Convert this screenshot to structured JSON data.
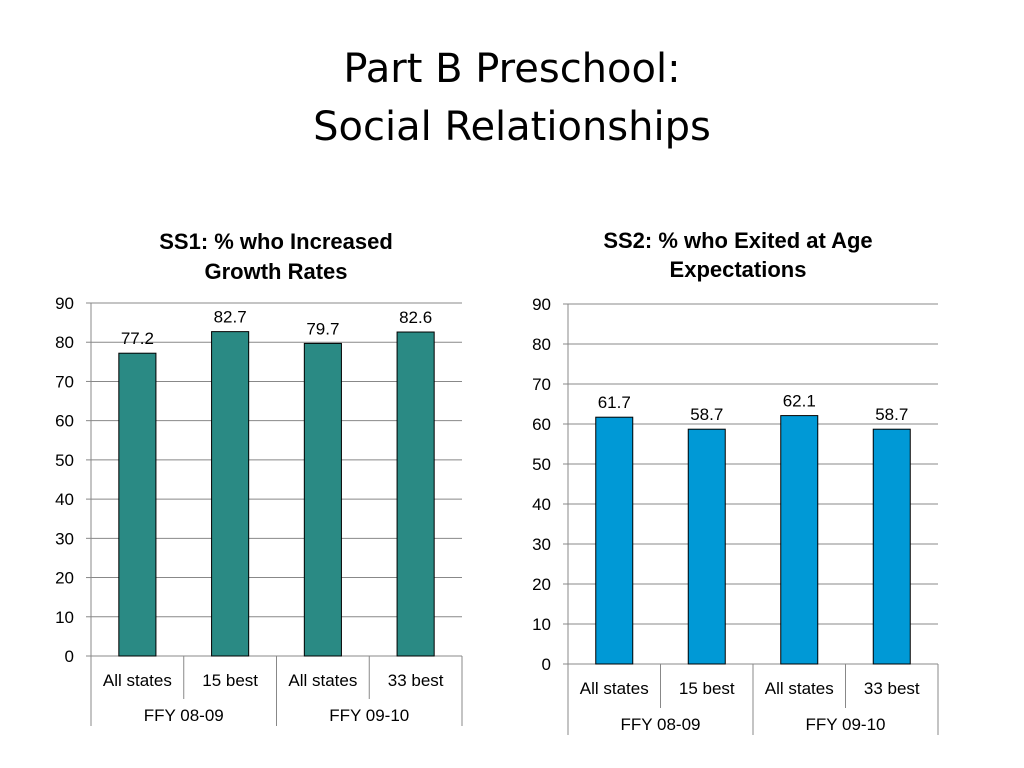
{
  "slide": {
    "title_line1": "Part B Preschool:",
    "title_line2": "Social Relationships"
  },
  "chart_data": [
    {
      "type": "bar",
      "title_lines": [
        "SS1: % who Increased",
        "Growth Rates"
      ],
      "categories": [
        "All states",
        "15 best",
        "All states",
        "33 best"
      ],
      "groups": [
        {
          "label": "FFY 08-09",
          "span": 2
        },
        {
          "label": "FFY 09-10",
          "span": 2
        }
      ],
      "values": [
        77.2,
        82.7,
        79.7,
        82.6
      ],
      "data_labels": [
        "77.2",
        "82.7",
        "79.7",
        "82.6"
      ],
      "ylim": [
        0,
        90
      ],
      "yticks": [
        0,
        10,
        20,
        30,
        40,
        50,
        60,
        70,
        80,
        90
      ],
      "grid": true,
      "legend": "none",
      "bar_color": "#2a8a84"
    },
    {
      "type": "bar",
      "title_lines": [
        "SS2: % who Exited at Age",
        "Expectations"
      ],
      "categories": [
        "All states",
        "15 best",
        "All states",
        "33 best"
      ],
      "groups": [
        {
          "label": "FFY 08-09",
          "span": 2
        },
        {
          "label": "FFY 09-10",
          "span": 2
        }
      ],
      "values": [
        61.7,
        58.7,
        62.1,
        58.7
      ],
      "data_labels": [
        "61.7",
        "58.7",
        "62.1",
        "58.7"
      ],
      "ylim": [
        0,
        90
      ],
      "yticks": [
        0,
        10,
        20,
        30,
        40,
        50,
        60,
        70,
        80,
        90
      ],
      "grid": true,
      "legend": "none",
      "bar_color": "#0099d6"
    }
  ]
}
